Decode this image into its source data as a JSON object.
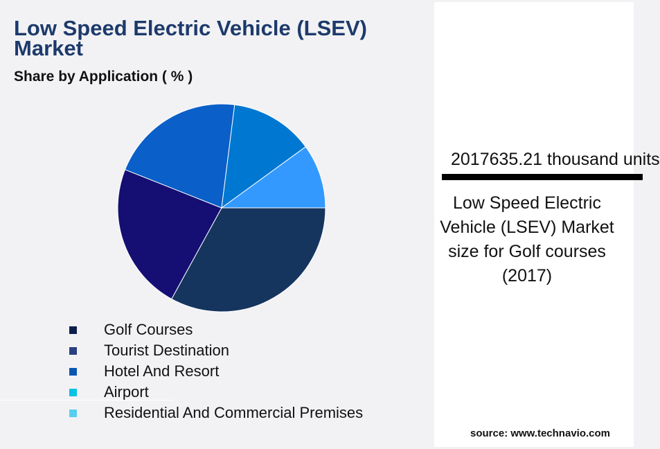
{
  "chart_data": {
    "type": "pie",
    "title": "Low Speed Electric Vehicle (LSEV) Market",
    "subtitle": "Share by Application ( % )",
    "categories": [
      "Golf Courses",
      "Tourist Destination",
      "Hotel And Resort",
      "Airport",
      "Residential And Commercial Premises"
    ],
    "values": [
      33,
      23,
      21,
      13,
      10
    ],
    "slice_colors": [
      "#15355f",
      "#150f73",
      "#0a5fc8",
      "#0077d0",
      "#3399ff"
    ],
    "legend_colors": [
      "#0c1f4a",
      "#2a4080",
      "#0a57b0",
      "#00c3e6",
      "#56cff0"
    ],
    "legend_position": "bottom"
  },
  "panel": {
    "headline": "2017635.21 thousand units",
    "description": "Low Speed Electric Vehicle (LSEV) Market size for Golf courses (2017)",
    "source": "source: www.technavio.com"
  }
}
